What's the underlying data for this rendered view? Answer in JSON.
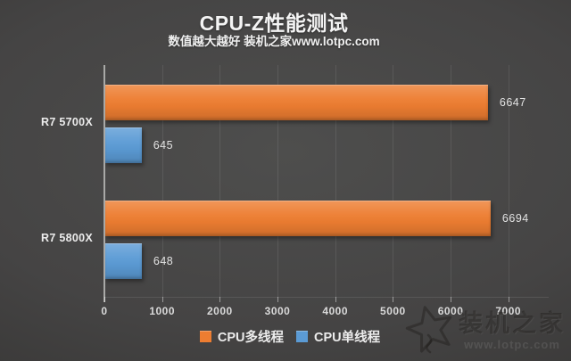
{
  "title": "CPU-Z性能测试",
  "subtitle": "数值越大越好 装机之家www.lotpc.com",
  "watermark": {
    "name": "装机之家",
    "url": "www.lotpc.com"
  },
  "colors": {
    "multi_thread_bar": "#ed7d31",
    "single_thread_bar": "#5b9bd5",
    "background": "#454444",
    "text": "#ececec"
  },
  "chart_data": {
    "type": "bar",
    "orientation": "horizontal",
    "title": "CPU-Z性能测试",
    "subtitle": "数值越大越好 装机之家www.lotpc.com",
    "categories": [
      "R7 5700X",
      "R7 5800X"
    ],
    "series": [
      {
        "name": "CPU多线程",
        "color": "#ed7d31",
        "values": [
          6647,
          6694
        ]
      },
      {
        "name": "CPU单线程",
        "color": "#5b9bd5",
        "values": [
          645,
          648
        ]
      }
    ],
    "xlabel": "",
    "ylabel": "",
    "x_ticks": [
      0,
      1000,
      2000,
      3000,
      4000,
      5000,
      6000,
      7000
    ],
    "xlim": [
      0,
      7700
    ],
    "grid": true,
    "legend_position": "bottom",
    "value_labels": "outside-end"
  }
}
